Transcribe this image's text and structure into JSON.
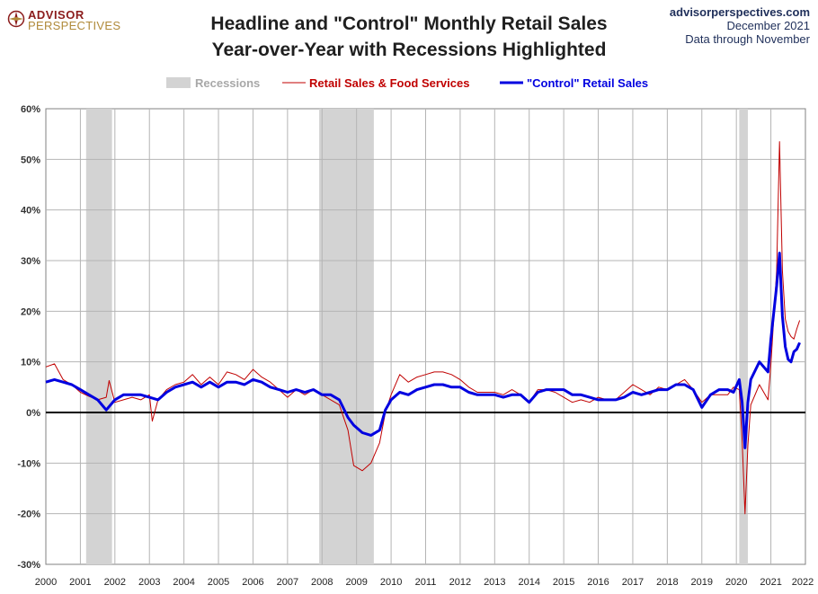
{
  "header": {
    "logo_top": "ADVISOR",
    "logo_bottom": "PERSPECTIVES",
    "title_line1": "Headline and \"Control\" Monthly Retail Sales",
    "title_line2": "Year-over-Year with Recessions Highlighted",
    "source_site": "advisorperspectives.com",
    "source_date": "December 2021",
    "source_note": "Data through November"
  },
  "chart_data": {
    "type": "line",
    "x_ticks": [
      "2000",
      "2001",
      "2002",
      "2003",
      "2004",
      "2005",
      "2006",
      "2007",
      "2008",
      "2009",
      "2010",
      "2011",
      "2012",
      "2013",
      "2014",
      "2015",
      "2016",
      "2017",
      "2018",
      "2019",
      "2020",
      "2021",
      "2022"
    ],
    "y_ticks": [
      "-30%",
      "-20%",
      "-10%",
      "0%",
      "10%",
      "20%",
      "30%",
      "40%",
      "50%",
      "60%"
    ],
    "xlim": [
      2000,
      2022
    ],
    "ylim": [
      -30,
      60
    ],
    "grid": true,
    "legend_position": "top",
    "legend": {
      "recessions": "Recessions",
      "headline": "Retail Sales & Food Services",
      "control": "\"Control\" Retail Sales"
    },
    "recessions": [
      {
        "start": "2001-03",
        "end": "2001-11"
      },
      {
        "start": "2007-12",
        "end": "2009-06"
      },
      {
        "start": "2020-02",
        "end": "2020-04"
      }
    ],
    "series": [
      {
        "name": "Retail Sales & Food Services",
        "color": "#c00000",
        "points": [
          [
            "2000-01",
            9.0
          ],
          [
            "2000-04",
            9.6
          ],
          [
            "2000-07",
            6.5
          ],
          [
            "2000-10",
            5.5
          ],
          [
            "2001-01",
            4.0
          ],
          [
            "2001-04",
            3.2
          ],
          [
            "2001-07",
            2.5
          ],
          [
            "2001-10",
            3.0
          ],
          [
            "2001-11",
            6.3
          ],
          [
            "2002-01",
            2.0
          ],
          [
            "2002-04",
            2.5
          ],
          [
            "2002-07",
            3.0
          ],
          [
            "2002-10",
            2.5
          ],
          [
            "2003-01",
            3.5
          ],
          [
            "2003-02",
            -1.7
          ],
          [
            "2003-04",
            2.5
          ],
          [
            "2003-07",
            4.5
          ],
          [
            "2003-10",
            5.5
          ],
          [
            "2004-01",
            6.0
          ],
          [
            "2004-04",
            7.5
          ],
          [
            "2004-07",
            5.5
          ],
          [
            "2004-10",
            7.0
          ],
          [
            "2005-01",
            5.5
          ],
          [
            "2005-04",
            8.0
          ],
          [
            "2005-07",
            7.5
          ],
          [
            "2005-10",
            6.5
          ],
          [
            "2006-01",
            8.5
          ],
          [
            "2006-04",
            7.0
          ],
          [
            "2006-07",
            6.0
          ],
          [
            "2006-10",
            4.5
          ],
          [
            "2007-01",
            3.0
          ],
          [
            "2007-04",
            4.5
          ],
          [
            "2007-07",
            3.5
          ],
          [
            "2007-10",
            4.5
          ],
          [
            "2008-01",
            3.5
          ],
          [
            "2008-04",
            2.5
          ],
          [
            "2008-07",
            1.5
          ],
          [
            "2008-10",
            -3.5
          ],
          [
            "2008-12",
            -10.5
          ],
          [
            "2009-03",
            -11.5
          ],
          [
            "2009-06",
            -10.0
          ],
          [
            "2009-09",
            -6.0
          ],
          [
            "2009-11",
            0.0
          ],
          [
            "2010-01",
            3.5
          ],
          [
            "2010-04",
            7.5
          ],
          [
            "2010-07",
            6.0
          ],
          [
            "2010-10",
            7.0
          ],
          [
            "2011-01",
            7.5
          ],
          [
            "2011-04",
            8.0
          ],
          [
            "2011-07",
            8.0
          ],
          [
            "2011-10",
            7.5
          ],
          [
            "2012-01",
            6.5
          ],
          [
            "2012-04",
            5.0
          ],
          [
            "2012-07",
            4.0
          ],
          [
            "2012-10",
            4.0
          ],
          [
            "2013-01",
            4.0
          ],
          [
            "2013-04",
            3.5
          ],
          [
            "2013-07",
            4.5
          ],
          [
            "2013-10",
            3.5
          ],
          [
            "2014-01",
            2.0
          ],
          [
            "2014-04",
            4.5
          ],
          [
            "2014-07",
            4.5
          ],
          [
            "2014-10",
            4.0
          ],
          [
            "2015-01",
            3.0
          ],
          [
            "2015-04",
            2.0
          ],
          [
            "2015-07",
            2.5
          ],
          [
            "2015-10",
            2.0
          ],
          [
            "2016-01",
            3.0
          ],
          [
            "2016-04",
            2.5
          ],
          [
            "2016-07",
            2.5
          ],
          [
            "2016-10",
            4.0
          ],
          [
            "2017-01",
            5.5
          ],
          [
            "2017-04",
            4.5
          ],
          [
            "2017-07",
            3.5
          ],
          [
            "2017-10",
            5.0
          ],
          [
            "2018-01",
            4.5
          ],
          [
            "2018-04",
            5.5
          ],
          [
            "2018-07",
            6.5
          ],
          [
            "2018-10",
            4.5
          ],
          [
            "2019-01",
            2.0
          ],
          [
            "2019-04",
            3.5
          ],
          [
            "2019-07",
            3.5
          ],
          [
            "2019-10",
            3.5
          ],
          [
            "2019-12",
            5.0
          ],
          [
            "2020-02",
            4.5
          ],
          [
            "2020-03",
            -5.5
          ],
          [
            "2020-04",
            -20.0
          ],
          [
            "2020-05",
            -6.5
          ],
          [
            "2020-06",
            1.5
          ],
          [
            "2020-09",
            5.5
          ],
          [
            "2020-12",
            2.5
          ],
          [
            "2021-01",
            9.5
          ],
          [
            "2021-03",
            28.0
          ],
          [
            "2021-04",
            53.5
          ],
          [
            "2021-05",
            28.0
          ],
          [
            "2021-06",
            18.5
          ],
          [
            "2021-07",
            16.0
          ],
          [
            "2021-08",
            15.0
          ],
          [
            "2021-09",
            14.5
          ],
          [
            "2021-10",
            16.5
          ],
          [
            "2021-11",
            18.2
          ]
        ]
      },
      {
        "name": "\"Control\" Retail Sales",
        "color": "#0000e0",
        "points": [
          [
            "2000-01",
            6.0
          ],
          [
            "2000-04",
            6.5
          ],
          [
            "2000-07",
            6.0
          ],
          [
            "2000-10",
            5.5
          ],
          [
            "2001-01",
            4.5
          ],
          [
            "2001-04",
            3.5
          ],
          [
            "2001-07",
            2.5
          ],
          [
            "2001-10",
            0.5
          ],
          [
            "2002-01",
            2.5
          ],
          [
            "2002-04",
            3.5
          ],
          [
            "2002-07",
            3.5
          ],
          [
            "2002-10",
            3.5
          ],
          [
            "2003-01",
            3.0
          ],
          [
            "2003-04",
            2.5
          ],
          [
            "2003-07",
            4.0
          ],
          [
            "2003-10",
            5.0
          ],
          [
            "2004-01",
            5.5
          ],
          [
            "2004-04",
            6.0
          ],
          [
            "2004-07",
            5.0
          ],
          [
            "2004-10",
            6.0
          ],
          [
            "2005-01",
            5.0
          ],
          [
            "2005-04",
            6.0
          ],
          [
            "2005-07",
            6.0
          ],
          [
            "2005-10",
            5.5
          ],
          [
            "2006-01",
            6.5
          ],
          [
            "2006-04",
            6.0
          ],
          [
            "2006-07",
            5.0
          ],
          [
            "2006-10",
            4.5
          ],
          [
            "2007-01",
            4.0
          ],
          [
            "2007-04",
            4.5
          ],
          [
            "2007-07",
            4.0
          ],
          [
            "2007-10",
            4.5
          ],
          [
            "2008-01",
            3.5
          ],
          [
            "2008-04",
            3.5
          ],
          [
            "2008-07",
            2.5
          ],
          [
            "2008-10",
            -1.0
          ],
          [
            "2008-12",
            -2.5
          ],
          [
            "2009-03",
            -4.0
          ],
          [
            "2009-06",
            -4.5
          ],
          [
            "2009-09",
            -3.5
          ],
          [
            "2009-11",
            0.5
          ],
          [
            "2010-01",
            2.5
          ],
          [
            "2010-04",
            4.0
          ],
          [
            "2010-07",
            3.5
          ],
          [
            "2010-10",
            4.5
          ],
          [
            "2011-01",
            5.0
          ],
          [
            "2011-04",
            5.5
          ],
          [
            "2011-07",
            5.5
          ],
          [
            "2011-10",
            5.0
          ],
          [
            "2012-01",
            5.0
          ],
          [
            "2012-04",
            4.0
          ],
          [
            "2012-07",
            3.5
          ],
          [
            "2012-10",
            3.5
          ],
          [
            "2013-01",
            3.5
          ],
          [
            "2013-04",
            3.0
          ],
          [
            "2013-07",
            3.5
          ],
          [
            "2013-10",
            3.5
          ],
          [
            "2014-01",
            2.0
          ],
          [
            "2014-04",
            4.0
          ],
          [
            "2014-07",
            4.5
          ],
          [
            "2014-10",
            4.5
          ],
          [
            "2015-01",
            4.5
          ],
          [
            "2015-04",
            3.5
          ],
          [
            "2015-07",
            3.5
          ],
          [
            "2015-10",
            3.0
          ],
          [
            "2016-01",
            2.5
          ],
          [
            "2016-04",
            2.5
          ],
          [
            "2016-07",
            2.5
          ],
          [
            "2016-10",
            3.0
          ],
          [
            "2017-01",
            4.0
          ],
          [
            "2017-04",
            3.5
          ],
          [
            "2017-07",
            4.0
          ],
          [
            "2017-10",
            4.5
          ],
          [
            "2018-01",
            4.5
          ],
          [
            "2018-04",
            5.5
          ],
          [
            "2018-07",
            5.5
          ],
          [
            "2018-10",
            4.5
          ],
          [
            "2019-01",
            1.0
          ],
          [
            "2019-04",
            3.5
          ],
          [
            "2019-07",
            4.5
          ],
          [
            "2019-10",
            4.5
          ],
          [
            "2019-12",
            4.0
          ],
          [
            "2020-02",
            6.5
          ],
          [
            "2020-03",
            2.0
          ],
          [
            "2020-04",
            -7.0
          ],
          [
            "2020-05",
            2.0
          ],
          [
            "2020-06",
            6.5
          ],
          [
            "2020-09",
            10.0
          ],
          [
            "2020-12",
            8.0
          ],
          [
            "2021-01",
            14.5
          ],
          [
            "2021-03",
            25.0
          ],
          [
            "2021-04",
            31.5
          ],
          [
            "2021-05",
            19.0
          ],
          [
            "2021-06",
            13.0
          ],
          [
            "2021-07",
            10.5
          ],
          [
            "2021-08",
            10.0
          ],
          [
            "2021-09",
            12.0
          ],
          [
            "2021-10",
            12.5
          ],
          [
            "2021-11",
            13.8
          ]
        ]
      }
    ]
  }
}
